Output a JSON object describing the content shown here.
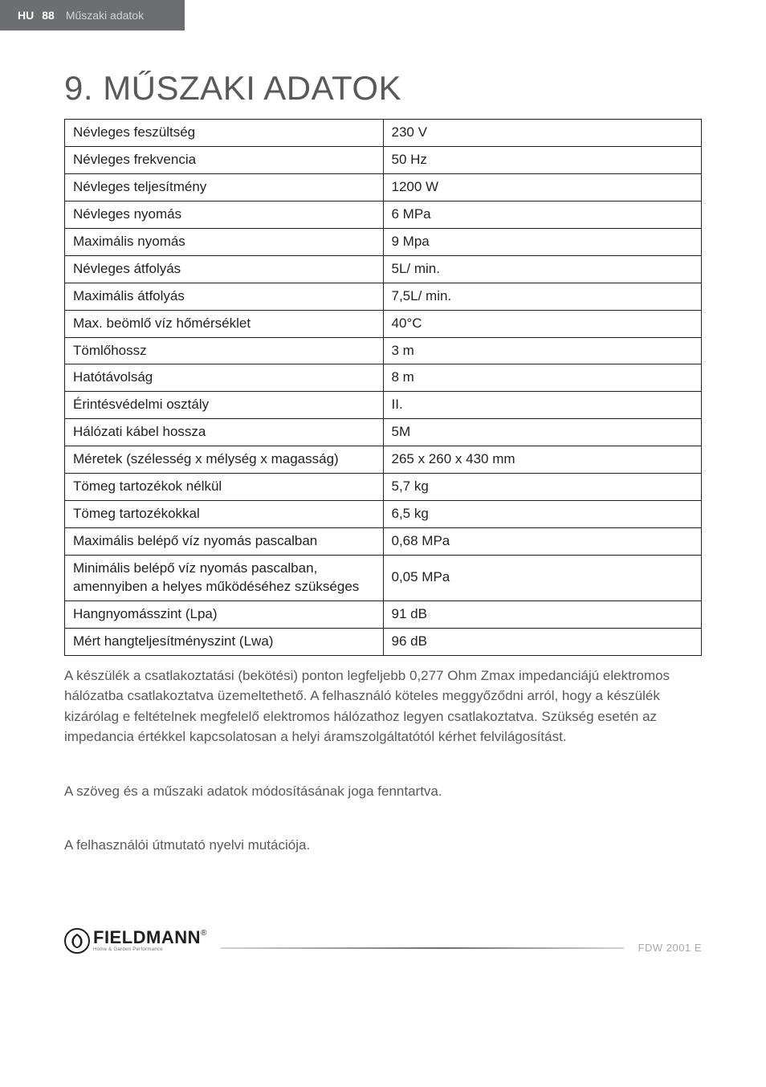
{
  "header": {
    "lang": "HU",
    "pagenum": "88",
    "section": "Műszaki adatok"
  },
  "title": "9. MŰSZAKI ADATOK",
  "table": {
    "rows": [
      {
        "label": "Névleges feszültség",
        "value": "230 V"
      },
      {
        "label": "Névleges frekvencia",
        "value": "50 Hz"
      },
      {
        "label": "Névleges teljesítmény",
        "value": "1200 W"
      },
      {
        "label": "Névleges nyomás",
        "value": "6 MPa"
      },
      {
        "label": "Maximális nyomás",
        "value": "9 Mpa"
      },
      {
        "label": "Névleges átfolyás",
        "value": "5L/ min."
      },
      {
        "label": "Maximális átfolyás",
        "value": "7,5L/ min."
      },
      {
        "label": "Max. beömlő víz hőmérséklet",
        "value": "40°C"
      },
      {
        "label": "Tömlőhossz",
        "value": "3 m"
      },
      {
        "label": "Hatótávolság",
        "value": "8 m"
      },
      {
        "label": "Érintésvédelmi osztály",
        "value": "II."
      },
      {
        "label": "Hálózati kábel hossza",
        "value": "5M"
      },
      {
        "label": "Méretek (szélesség x mélység x magasság)",
        "value": "265 x 260 x 430 mm"
      },
      {
        "label": "Tömeg tartozékok nélkül",
        "value": "5,7 kg"
      },
      {
        "label": "Tömeg tartozékokkal",
        "value": "6,5 kg"
      },
      {
        "label": "Maximális belépő víz nyomás pascalban",
        "value": "0,68 MPa"
      },
      {
        "label": "Minimális belépő víz nyomás pascalban, amennyiben a helyes működéséhez szükséges",
        "value": "0,05 MPa"
      },
      {
        "label": "Hangnyomásszint (Lpa)",
        "value": "91 dB"
      },
      {
        "label": "Mért hangteljesítményszint (Lwa)",
        "value": "96 dB"
      }
    ]
  },
  "paragraphs": {
    "p1": "A készülék a csatlakoztatási (bekötési) ponton legfeljebb 0,277 Ohm Zmax impedanciájú elektromos hálózatba csatlakoztatva üzemeltethető. A felhasználó köteles meggyőződni arról, hogy a készülék kizárólag e feltételnek megfelelő elektromos hálózathoz legyen csatlakoztatva. Szükség esetén az impedancia értékkel kapcsolatosan a helyi áramszolgáltatótól kérhet felvilágosítást.",
    "p2": "A szöveg és a műszaki adatok módosításának joga fenntartva.",
    "p3": "A felhasználói útmutató nyelvi mutációja."
  },
  "footer": {
    "brand": "FIELDMANN",
    "brand_sub": "Home & Garden Performance",
    "reg": "®",
    "model": "FDW 2001 E"
  },
  "style": {
    "header_bg": "#6d6e71",
    "header_text": "#ffffff",
    "header_muted": "#d1d3d4",
    "body_text": "#231f20",
    "muted_text": "#58595b",
    "footer_muted": "#a7a9ac",
    "border": "#231f20"
  }
}
